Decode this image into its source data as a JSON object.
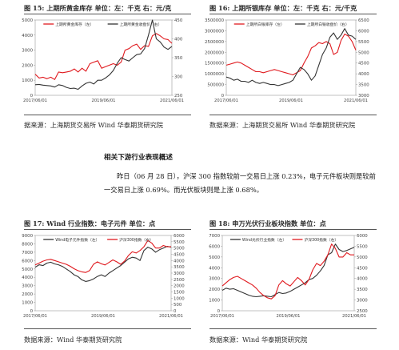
{
  "figures": [
    {
      "id": "fig15",
      "title": "图 15:    上期所黄金库存    单位：左：千克   右：元/克",
      "source": "据来源：上海期货交易所 Wind  华泰期货研究院"
    },
    {
      "id": "fig16",
      "title": "图 16:    上期所银库存    单位：左：千克 右：元/千克",
      "source": "数据来源：上海期货交易所 Wind  华泰期货研究院"
    },
    {
      "id": "fig17",
      "title": "图 17:    Wind 行业指数：电子元件      单位：点",
      "source": "数据来源：Wind  华泰期货研究院"
    },
    {
      "id": "fig18",
      "title": "图 18:    申万光伏行业板块指数            单位：点",
      "source": "数据来源：Wind  华泰期货研究院"
    }
  ],
  "section": {
    "heading": "相关下游行业表现概述",
    "paragraph": "昨日（06 月 28 日），沪深 300 指数较前一交易日上涨 0.23%，电子元件板块则是较前一交易日上涨 0.69%。而光伏板块则是上涨 0.68%。"
  },
  "chart_data": [
    {
      "type": "line",
      "x_ticks": [
        "2017/06/01",
        "2019/06/01",
        "2021/06/01"
      ],
      "y_left": {
        "ticks": [
          "0",
          "1000",
          "2000",
          "3000",
          "4000",
          "5000"
        ],
        "range": [
          0,
          5000
        ]
      },
      "y_right": {
        "ticks": [
          "250",
          "300",
          "350",
          "400",
          "450"
        ],
        "range": [
          250,
          450
        ]
      },
      "series": [
        {
          "name": "上期所黄金库存（左）",
          "axis": "left",
          "color": "#e0191e",
          "values": [
            1400,
            1150,
            1200,
            1100,
            1200,
            1050,
            1550,
            1500,
            1550,
            1600,
            1750,
            1550,
            1800,
            1600,
            2100,
            2200,
            2300,
            1800,
            1900,
            2000,
            2100,
            2000,
            2200,
            3000,
            3100,
            3300,
            3400,
            3050,
            3300,
            3250,
            3950,
            4100,
            3950,
            3750,
            3700,
            3450
          ]
        },
        {
          "name": "上期所黄金收盘价（右）",
          "axis": "right",
          "color": "#333333",
          "values": [
            278,
            279,
            277,
            276,
            275,
            272,
            278,
            276,
            271,
            268,
            269,
            266,
            275,
            282,
            285,
            280,
            290,
            290,
            296,
            304,
            316,
            335,
            350,
            345,
            341,
            350,
            358,
            360,
            374,
            410,
            450,
            400,
            392,
            378,
            372,
            380
          ]
        }
      ]
    },
    {
      "type": "line",
      "x_ticks": [
        "2017/06/01",
        "2019/06/01",
        "2021/06/01"
      ],
      "y_left": {
        "ticks": [
          "0",
          "500000",
          "1000000",
          "1500000",
          "2000000",
          "2500000",
          "3000000",
          "3500000"
        ],
        "range": [
          0,
          3500000
        ]
      },
      "y_right": {
        "ticks": [
          "3000",
          "3500",
          "4000",
          "4500",
          "5000",
          "5500",
          "6000",
          "6500"
        ],
        "range": [
          3000,
          6500
        ]
      },
      "series": [
        {
          "name": "上期所白银库存（左）",
          "axis": "left",
          "color": "#e0191e",
          "values": [
            1400000,
            1450000,
            1500000,
            1550000,
            1500000,
            1400000,
            1300000,
            1200000,
            1100000,
            1100000,
            1050000,
            1100000,
            1150000,
            1200000,
            1150000,
            1100000,
            1050000,
            1000000,
            950000,
            1050000,
            1150000,
            1500000,
            1800000,
            2200000,
            2300000,
            2450000,
            2400000,
            2500000,
            2400000,
            1900000,
            2000000,
            2550000,
            2850000,
            2750000,
            2500000,
            2100000
          ]
        },
        {
          "name": "上期所白银收盘价（右）",
          "axis": "right",
          "color": "#333333",
          "values": [
            3850,
            3800,
            3700,
            3750,
            3650,
            3650,
            3600,
            3700,
            3600,
            3550,
            3600,
            3550,
            3500,
            3500,
            3450,
            3500,
            3550,
            3600,
            3700,
            4000,
            4300,
            4200,
            4000,
            3700,
            3900,
            4400,
            4900,
            5200,
            5700,
            5900,
            5600,
            5800,
            6100,
            5800,
            5750,
            5600
          ]
        }
      ]
    },
    {
      "type": "line",
      "x_ticks": [
        "2017/06/01",
        "2019/06/01",
        "2021/06/01"
      ],
      "y_left": {
        "ticks": [
          "0",
          "1000",
          "2000",
          "3000",
          "4000",
          "5000",
          "6000",
          "7000",
          "8000",
          "9000"
        ],
        "range": [
          0,
          9000
        ]
      },
      "y_right": {
        "ticks": [
          "0",
          "500",
          "1000",
          "1500",
          "2000",
          "2500",
          "3000",
          "3500",
          "4000",
          "4500",
          "5000",
          "5500",
          "6000"
        ],
        "range": [
          0,
          6000
        ]
      },
      "series": [
        {
          "name": "Wind电子元件指数（左）",
          "axis": "left",
          "color": "#333333",
          "values": [
            5200,
            5500,
            5400,
            5700,
            5800,
            5600,
            5500,
            5300,
            5000,
            4700,
            4300,
            4100,
            3700,
            3500,
            3600,
            3800,
            4100,
            4300,
            4100,
            4500,
            4800,
            5100,
            5400,
            5800,
            6200,
            6400,
            6300,
            6000,
            7200,
            7600,
            7400,
            7000,
            7300,
            7500,
            7700,
            7600
          ]
        },
        {
          "name": "沪深300指数（右）",
          "axis": "right",
          "color": "#e0191e",
          "values": [
            3650,
            3800,
            3950,
            4050,
            4100,
            4000,
            3900,
            3800,
            3700,
            3550,
            3350,
            3200,
            3100,
            3050,
            3200,
            3700,
            3900,
            3750,
            3650,
            3850,
            4050,
            3900,
            3700,
            3950,
            4400,
            4700,
            4600,
            4800,
            5100,
            5600,
            5400,
            5000,
            5000,
            5200,
            5100,
            5100
          ]
        }
      ]
    },
    {
      "type": "line",
      "x_ticks": [
        "2017/06/01",
        "2019/06/01",
        "2021/06/01"
      ],
      "y_left": {
        "ticks": [
          "0",
          "1000",
          "2000",
          "3000",
          "4000",
          "5000",
          "6000",
          "7000"
        ],
        "range": [
          0,
          7000
        ]
      },
      "y_right": {
        "ticks": [
          "2500",
          "3000",
          "3500",
          "4000",
          "4500",
          "5000",
          "5500",
          "6000"
        ],
        "range": [
          2500,
          6000
        ]
      },
      "series": [
        {
          "name": "Wind光伏行业指数（左）",
          "axis": "left",
          "color": "#333333",
          "values": [
            1900,
            2100,
            2000,
            2050,
            1900,
            1750,
            1600,
            1450,
            1350,
            1300,
            1350,
            1400,
            1350,
            1300,
            1500,
            1700,
            1600,
            1650,
            1800,
            2000,
            2200,
            2400,
            2600,
            2900,
            3000,
            3300,
            3700,
            4200,
            5200,
            5400,
            6200,
            5700,
            5500,
            5600,
            5750,
            5900
          ]
        },
        {
          "name": "沪深300指数（右）",
          "axis": "right",
          "color": "#e0191e",
          "values": [
            3650,
            3800,
            3950,
            4050,
            4100,
            4000,
            3900,
            3800,
            3700,
            3550,
            3350,
            3200,
            3100,
            3050,
            3200,
            3700,
            3900,
            3750,
            3650,
            3850,
            4050,
            3900,
            3700,
            3950,
            4400,
            4700,
            4600,
            4800,
            5100,
            5600,
            5400,
            5000,
            5000,
            5200,
            5100,
            5100
          ]
        }
      ]
    }
  ]
}
